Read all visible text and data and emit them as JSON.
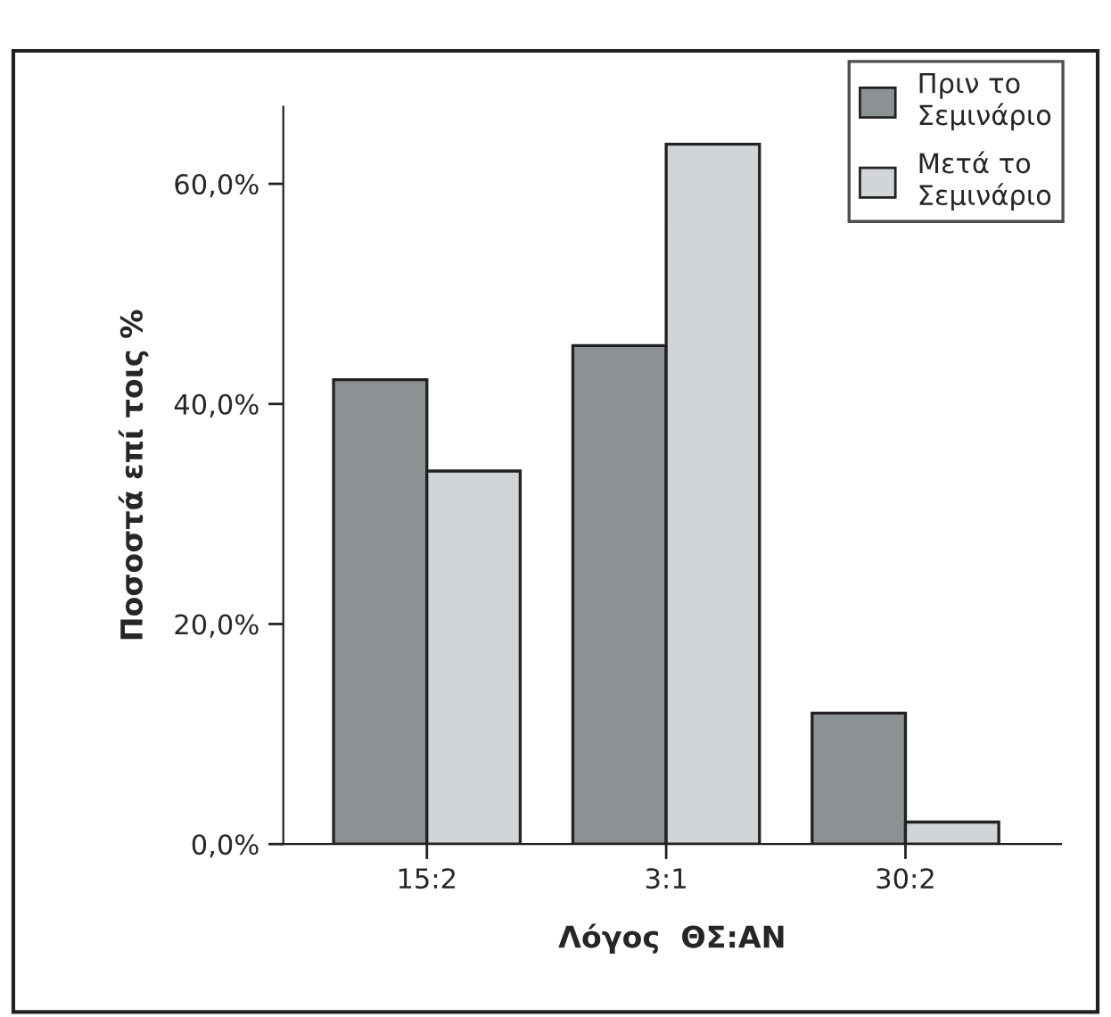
{
  "chart_data": {
    "type": "bar",
    "xlabel": "Λόγος  ΘΣ:ΑΝ",
    "ylabel": "Ποσοστά επί τοις %",
    "categories": [
      "15:2",
      "3:1",
      "30:2"
    ],
    "series": [
      {
        "name": "Πριν το\nΣεμινάριο",
        "color": "#8c9194",
        "values": [
          42.2,
          45.3,
          11.9
        ]
      },
      {
        "name": "Μετά το\nΣεμινάριο",
        "color": "#d2d5d7",
        "values": [
          33.9,
          63.6,
          2.0
        ]
      }
    ],
    "ylim": [
      0,
      67
    ],
    "yticks": [
      {
        "value": 0,
        "label": "0,0%"
      },
      {
        "value": 20,
        "label": "20,0%"
      },
      {
        "value": 40,
        "label": "40,0%"
      },
      {
        "value": 60,
        "label": "60,0%"
      }
    ],
    "grid": false,
    "legend": "top right"
  }
}
